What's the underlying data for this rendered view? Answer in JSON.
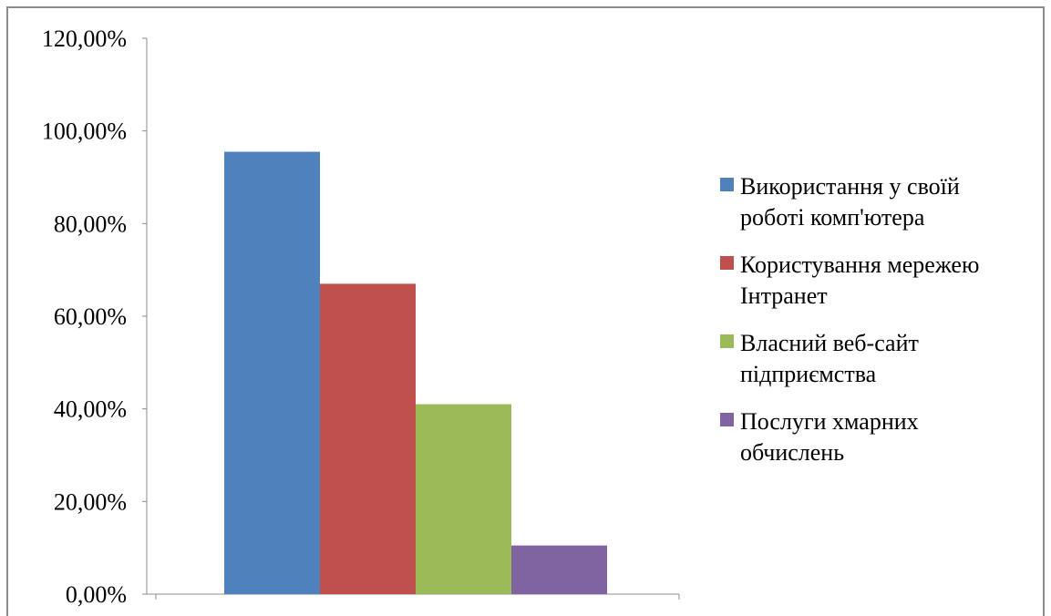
{
  "chart_data": {
    "type": "bar",
    "title": "",
    "xlabel": "",
    "ylabel": "",
    "ylim": [
      0,
      120
    ],
    "yticks": [
      0,
      20,
      40,
      60,
      80,
      100,
      120
    ],
    "ytick_labels": [
      "0,00%",
      "20,00%",
      "40,00%",
      "60,00%",
      "80,00%",
      "100,00%",
      "120,00%"
    ],
    "grid": false,
    "legend_position": "right",
    "categories": [
      ""
    ],
    "series": [
      {
        "name": "Використання у своїй роботі комп'ютера",
        "name_lines": [
          "Використання у своїй",
          "роботі комп'ютера"
        ],
        "values": [
          95.5
        ],
        "color": "#4f81bd"
      },
      {
        "name": "Користування мережею Інтранет",
        "name_lines": [
          "Користування мережею",
          "Інтранет"
        ],
        "values": [
          67
        ],
        "color": "#c0504d"
      },
      {
        "name": "Власний веб-сайт підприємства",
        "name_lines": [
          "Власний веб-сайт",
          "підприємства"
        ],
        "values": [
          41
        ],
        "color": "#9bbb59"
      },
      {
        "name": "Послуги хмарних обчислень",
        "name_lines": [
          "Послуги хмарних",
          "обчислень"
        ],
        "values": [
          10.5
        ],
        "color": "#8064a2"
      }
    ]
  }
}
